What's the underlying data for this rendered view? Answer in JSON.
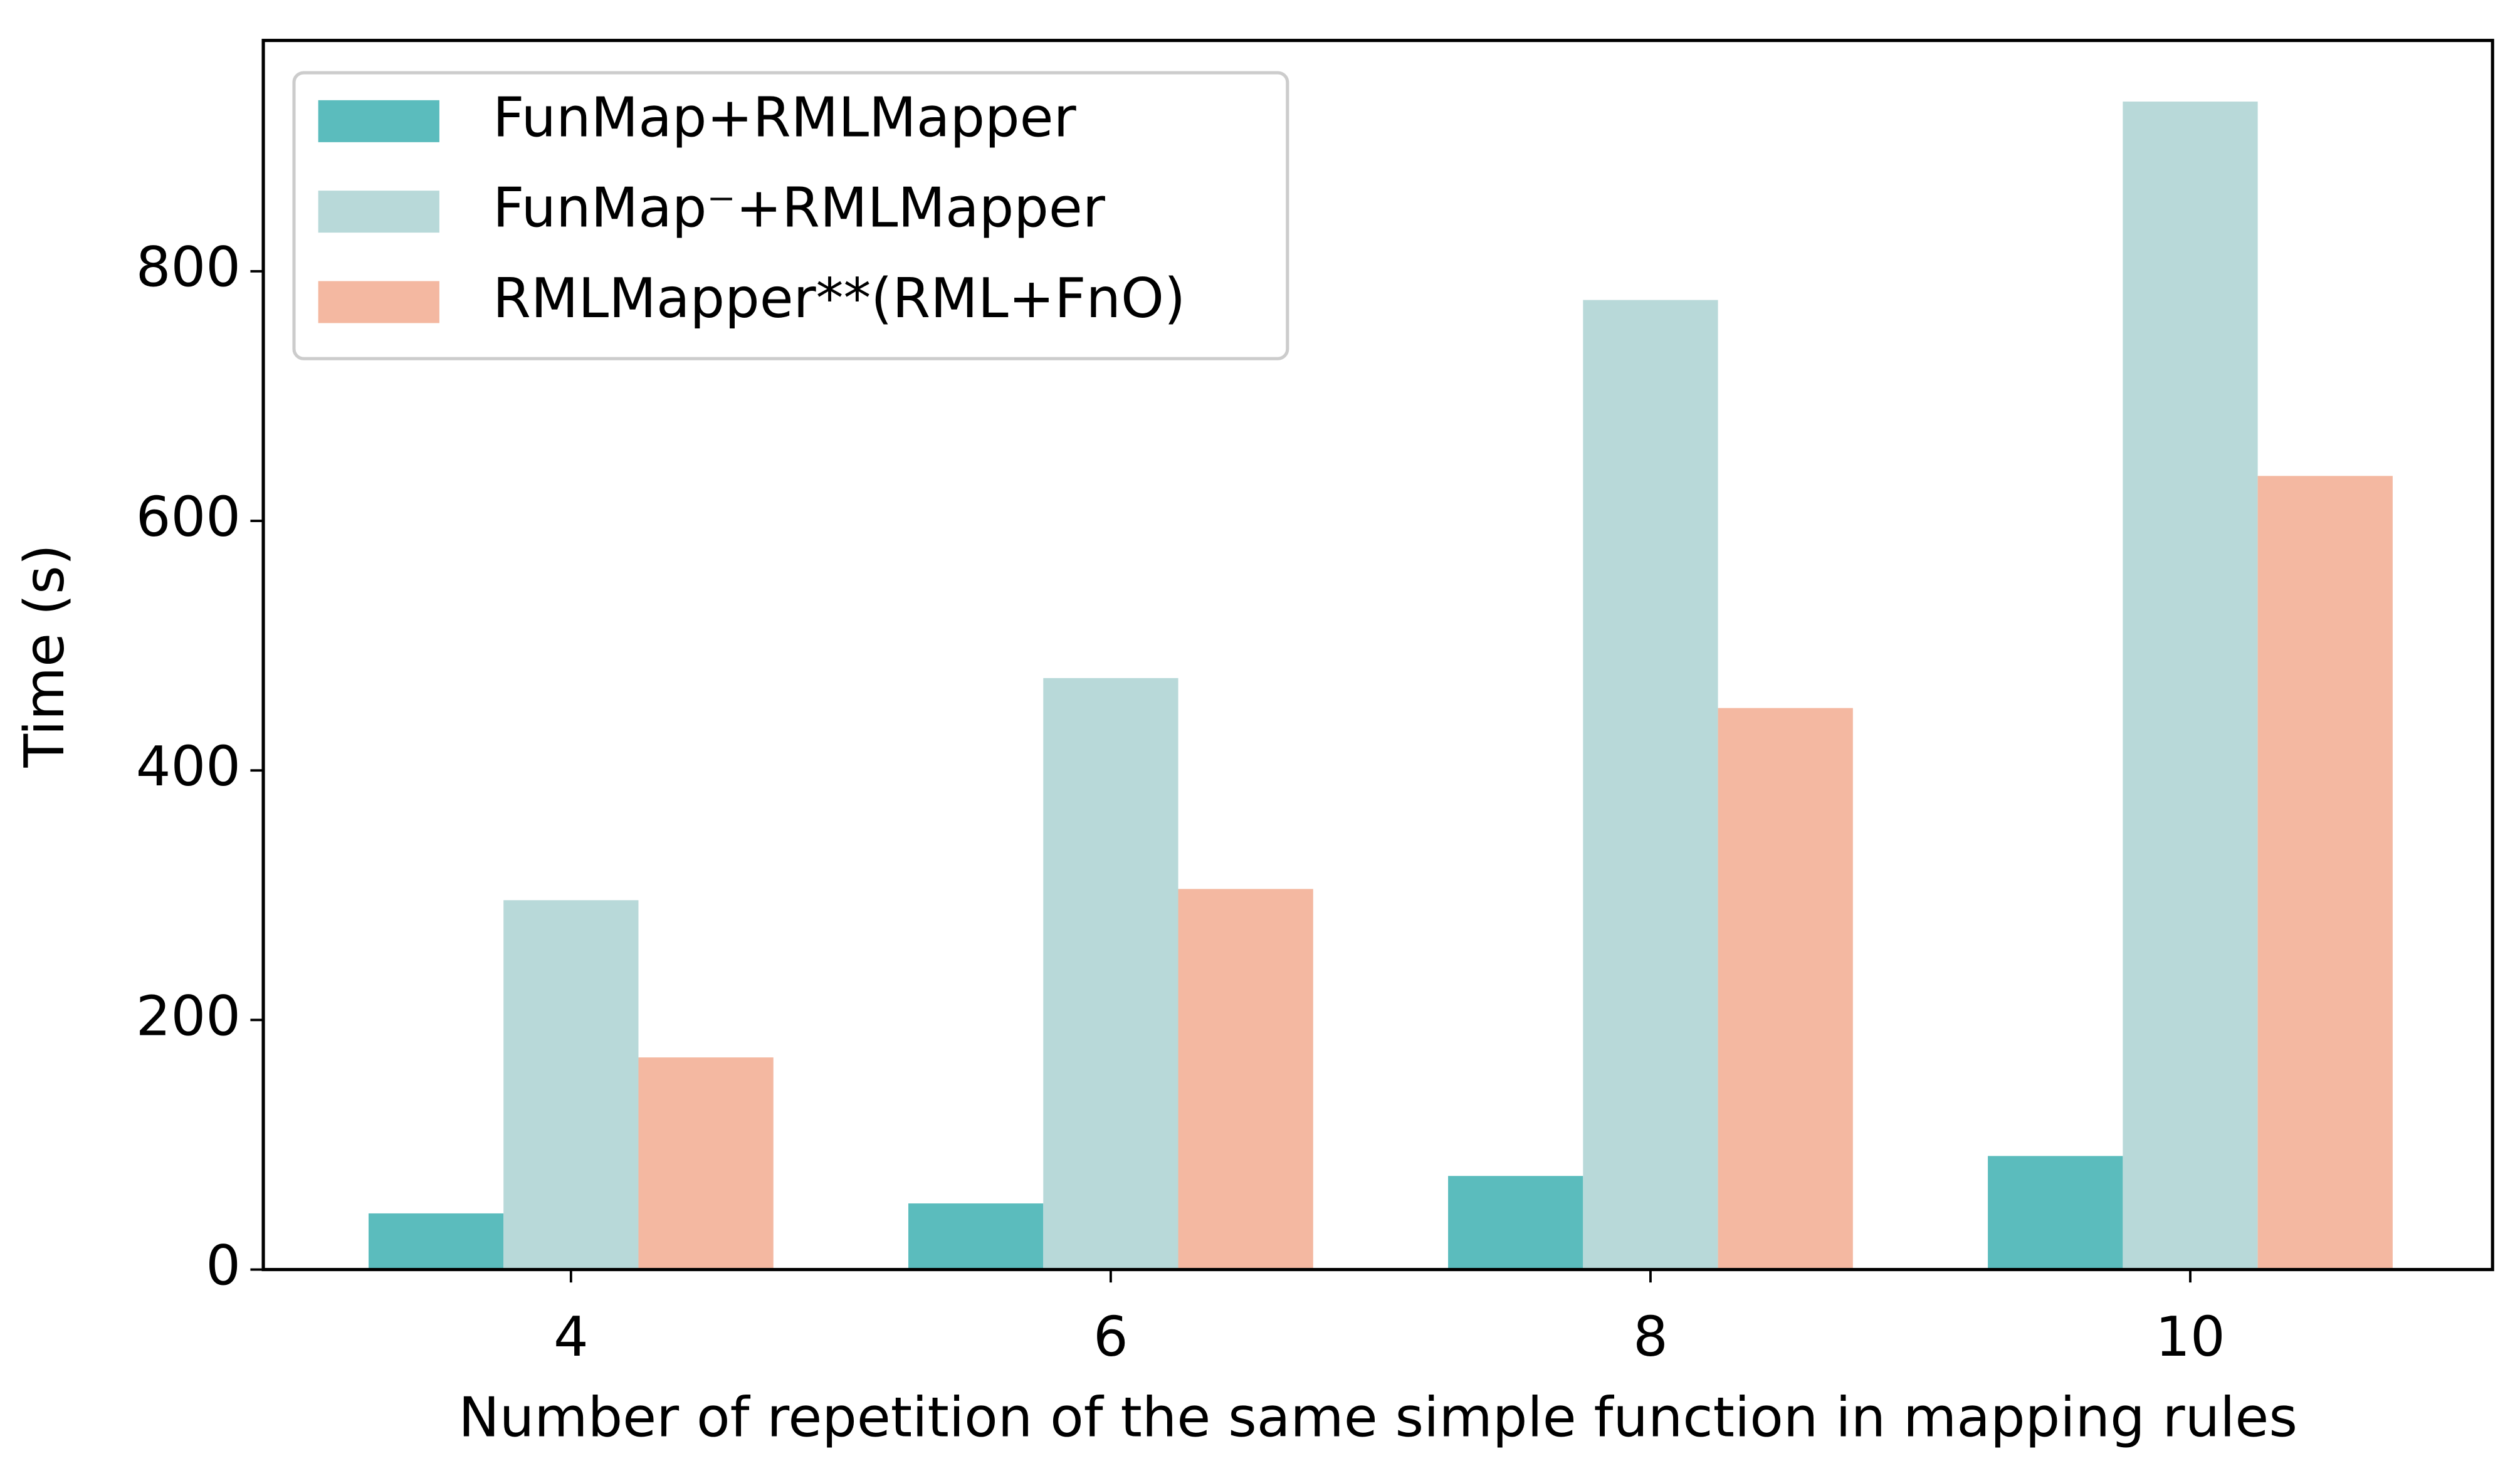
{
  "chart_data": {
    "type": "bar",
    "x_label": "Number of repetition of the same simple function in mapping rules",
    "y_label": "Time (s)",
    "categories": [
      "4",
      "6",
      "8",
      "10"
    ],
    "series": [
      {
        "name": "FunMap+RMLMapper",
        "color": "#5bbcbd",
        "values": [
          45,
          53,
          75,
          91
        ]
      },
      {
        "name": "FunMap⁻+RMLMapper",
        "color": "#b8d9d9",
        "values": [
          296,
          474,
          777,
          936
        ]
      },
      {
        "name": "RMLMapper**(RML+FnO)",
        "color": "#f4b8a1",
        "values": [
          170,
          305,
          450,
          636
        ]
      }
    ],
    "ylim": [
      0,
      985
    ],
    "yticks": [
      0,
      200,
      400,
      600,
      800
    ],
    "legend": "upper left",
    "grid": false
  }
}
